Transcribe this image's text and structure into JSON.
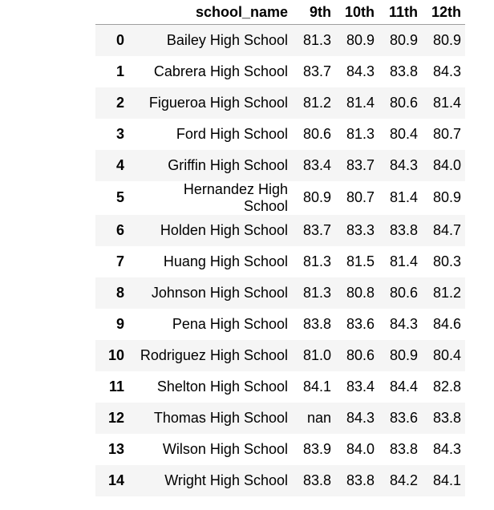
{
  "table": {
    "columns": [
      "school_name",
      "9th",
      "10th",
      "11th",
      "12th"
    ],
    "rows": [
      {
        "index": "0",
        "school_name": "Bailey High School",
        "g9": "81.3",
        "g10": "80.9",
        "g11": "80.9",
        "g12": "80.9"
      },
      {
        "index": "1",
        "school_name": "Cabrera High School",
        "g9": "83.7",
        "g10": "84.3",
        "g11": "83.8",
        "g12": "84.3"
      },
      {
        "index": "2",
        "school_name": "Figueroa High School",
        "g9": "81.2",
        "g10": "81.4",
        "g11": "80.6",
        "g12": "81.4"
      },
      {
        "index": "3",
        "school_name": "Ford High School",
        "g9": "80.6",
        "g10": "81.3",
        "g11": "80.4",
        "g12": "80.7"
      },
      {
        "index": "4",
        "school_name": "Griffin High School",
        "g9": "83.4",
        "g10": "83.7",
        "g11": "84.3",
        "g12": "84.0"
      },
      {
        "index": "5",
        "school_name": "Hernandez High School",
        "g9": "80.9",
        "g10": "80.7",
        "g11": "81.4",
        "g12": "80.9"
      },
      {
        "index": "6",
        "school_name": "Holden High School",
        "g9": "83.7",
        "g10": "83.3",
        "g11": "83.8",
        "g12": "84.7"
      },
      {
        "index": "7",
        "school_name": "Huang High School",
        "g9": "81.3",
        "g10": "81.5",
        "g11": "81.4",
        "g12": "80.3"
      },
      {
        "index": "8",
        "school_name": "Johnson High School",
        "g9": "81.3",
        "g10": "80.8",
        "g11": "80.6",
        "g12": "81.2"
      },
      {
        "index": "9",
        "school_name": "Pena High School",
        "g9": "83.8",
        "g10": "83.6",
        "g11": "84.3",
        "g12": "84.6"
      },
      {
        "index": "10",
        "school_name": "Rodriguez High School",
        "g9": "81.0",
        "g10": "80.6",
        "g11": "80.9",
        "g12": "80.4"
      },
      {
        "index": "11",
        "school_name": "Shelton High School",
        "g9": "84.1",
        "g10": "83.4",
        "g11": "84.4",
        "g12": "82.8"
      },
      {
        "index": "12",
        "school_name": "Thomas High School",
        "g9": "nan",
        "g10": "84.3",
        "g11": "83.6",
        "g12": "83.8"
      },
      {
        "index": "13",
        "school_name": "Wilson High School",
        "g9": "83.9",
        "g10": "84.0",
        "g11": "83.8",
        "g12": "84.3"
      },
      {
        "index": "14",
        "school_name": "Wright High School",
        "g9": "83.8",
        "g10": "83.8",
        "g11": "84.2",
        "g12": "84.1"
      }
    ]
  }
}
